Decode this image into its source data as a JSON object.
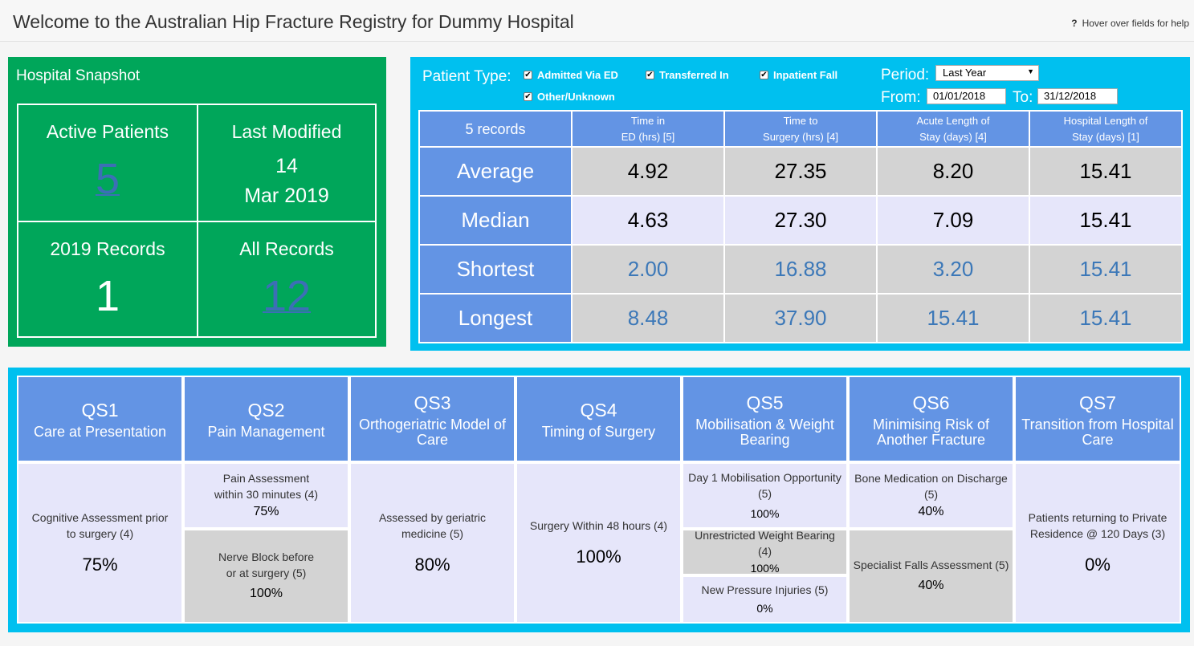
{
  "header": {
    "title": "Welcome to the Australian Hip Fracture Registry for Dummy Hospital",
    "help_icon": "?",
    "help_text": "Hover over fields for help"
  },
  "snapshot": {
    "title": "Hospital Snapshot",
    "active_label": "Active Patients",
    "active_value": "5",
    "modified_label": "Last Modified",
    "modified_day": "14",
    "modified_month_year": "Mar 2019",
    "year_label": "2019 Records",
    "year_value": "1",
    "all_label": "All Records",
    "all_value": "12"
  },
  "filters": {
    "patient_type_label": "Patient Type:",
    "checkboxes": [
      {
        "label": "Admitted Via ED",
        "checked": true
      },
      {
        "label": "Transferred In",
        "checked": true
      },
      {
        "label": "Inpatient Fall",
        "checked": true
      },
      {
        "label": "Other/Unknown",
        "checked": true
      }
    ],
    "period_label": "Period:",
    "period_value": "Last Year",
    "from_label": "From:",
    "from_value": "01/01/2018",
    "to_label": "To:",
    "to_value": "31/12/2018"
  },
  "stats": {
    "records_label": "5 records",
    "columns": [
      {
        "line1": "Time in",
        "line2": "ED (hrs) [5]"
      },
      {
        "line1": "Time to",
        "line2": "Surgery (hrs) [4]"
      },
      {
        "line1": "Acute Length of",
        "line2": "Stay (days) [4]"
      },
      {
        "line1": "Hospital Length of",
        "line2": "Stay (days) [1]"
      }
    ],
    "rows": [
      {
        "label": "Average",
        "values": [
          "4.92",
          "27.35",
          "8.20",
          "15.41"
        ]
      },
      {
        "label": "Median",
        "values": [
          "4.63",
          "27.30",
          "7.09",
          "15.41"
        ]
      },
      {
        "label": "Shortest",
        "values": [
          "2.00",
          "16.88",
          "3.20",
          "15.41"
        ]
      },
      {
        "label": "Longest",
        "values": [
          "8.48",
          "37.90",
          "15.41",
          "15.41"
        ]
      }
    ]
  },
  "qs": {
    "headers": [
      {
        "code": "QS1",
        "name": "Care at Presentation"
      },
      {
        "code": "QS2",
        "name": "Pain Management"
      },
      {
        "code": "QS3",
        "name": "Orthogeriatric Model of Care"
      },
      {
        "code": "QS4",
        "name": "Timing of Surgery"
      },
      {
        "code": "QS5",
        "name": "Mobilisation & Weight Bearing"
      },
      {
        "code": "QS6",
        "name": "Minimising Risk of Another Fracture"
      },
      {
        "code": "QS7",
        "name": "Transition from Hospital Care"
      }
    ],
    "qs1": {
      "label": "Cognitive Assessment prior to surgery (4)",
      "value": "75%"
    },
    "qs2a": {
      "label1": "Pain Assessment",
      "label2": "within 30 minutes (4)",
      "value": "75%"
    },
    "qs2b": {
      "label1": "Nerve Block before",
      "label2": "or at surgery (5)",
      "value": "100%"
    },
    "qs3": {
      "label": "Assessed by geriatric medicine (5)",
      "value": "80%"
    },
    "qs4": {
      "label": "Surgery Within 48 hours (4)",
      "value": "100%"
    },
    "qs5a": {
      "label": "Day 1 Mobilisation Opportunity (5)",
      "value": "100%"
    },
    "qs5b": {
      "label": "Unrestricted Weight Bearing (4)",
      "value": "100%"
    },
    "qs5c": {
      "label": "New Pressure Injuries (5)",
      "value": "0%"
    },
    "qs6a": {
      "label": "Bone Medication on Discharge (5)",
      "value": "40%"
    },
    "qs6b": {
      "label": "Specialist Falls Assessment (5)",
      "value": "40%"
    },
    "qs7": {
      "label": "Patients returning to Private Residence @ 120 Days (3)",
      "value": "0%"
    }
  }
}
